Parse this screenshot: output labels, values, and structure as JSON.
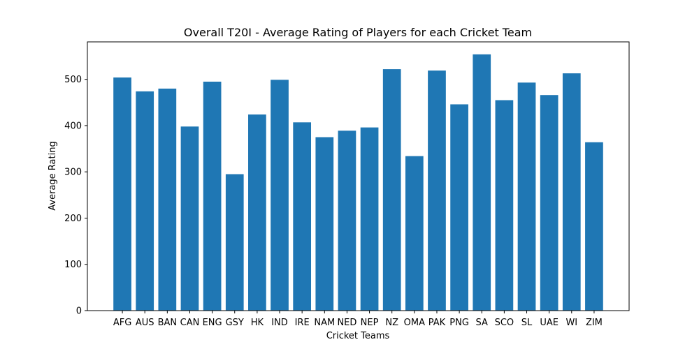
{
  "chart_data": {
    "type": "bar",
    "title": "Overall T20I - Average Rating of Players for each Cricket Team",
    "xlabel": "Cricket Teams",
    "ylabel": "Average Rating",
    "categories": [
      "AFG",
      "AUS",
      "BAN",
      "CAN",
      "ENG",
      "GSY",
      "HK",
      "IND",
      "IRE",
      "NAM",
      "NED",
      "NEP",
      "NZ",
      "OMA",
      "PAK",
      "PNG",
      "SA",
      "SCO",
      "SL",
      "UAE",
      "WI",
      "ZIM"
    ],
    "values": [
      504,
      474,
      480,
      398,
      495,
      295,
      424,
      499,
      407,
      375,
      389,
      396,
      522,
      334,
      519,
      446,
      554,
      455,
      493,
      466,
      513,
      364
    ],
    "ylim": [
      0,
      581
    ],
    "yticks": [
      0,
      100,
      200,
      300,
      400,
      500
    ],
    "bar_color": "#1f77b4",
    "grid": false,
    "legend": "none"
  }
}
